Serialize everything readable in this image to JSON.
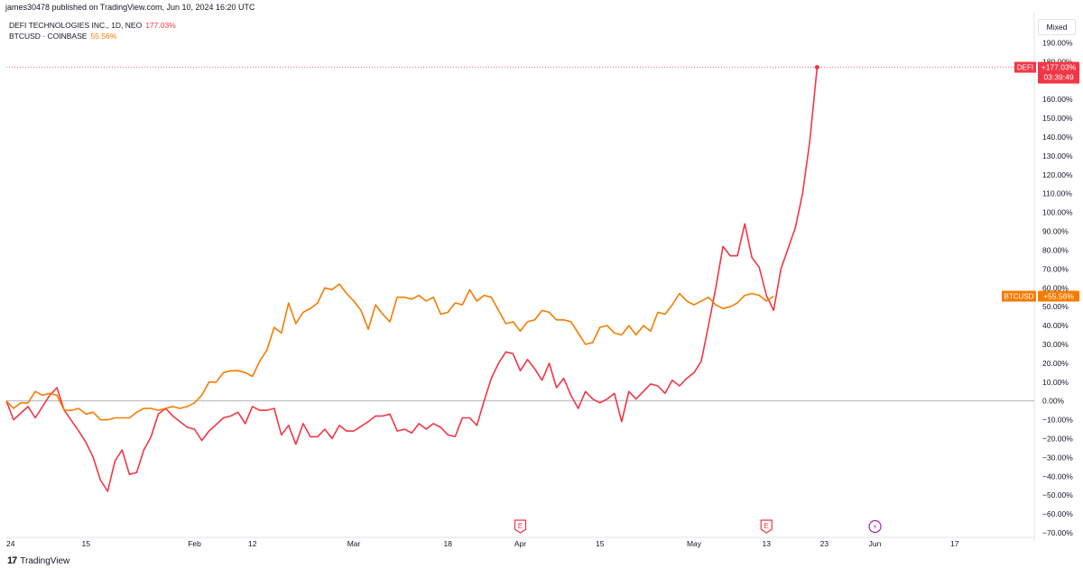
{
  "header": {
    "published": "james30478 published on TradingView.com, Jun 10, 2024 16:20 UTC"
  },
  "legend": {
    "defi_name": "DEFI TECHNOLOGIES INC., 1D, NEO",
    "defi_value": "177.03%",
    "btc_name": "BTCUSD · COINBASE",
    "btc_value": "55.56%"
  },
  "scale_mode": "Mixed",
  "footer": {
    "brand": "TradingView",
    "logo": "17"
  },
  "colors": {
    "defi": "#f23645",
    "btc": "#f57c00",
    "zero_line": "#b2b5be",
    "grid": "#f0f3fa"
  },
  "chart_data": {
    "type": "line",
    "title": "",
    "x_start_label": "24",
    "x_labels": [
      {
        "index": 0,
        "label": "24"
      },
      {
        "index": 11,
        "label": "15"
      },
      {
        "index": 26,
        "label": "Feb"
      },
      {
        "index": 34,
        "label": "12"
      },
      {
        "index": 48,
        "label": "Mar"
      },
      {
        "index": 61,
        "label": "18"
      },
      {
        "index": 71,
        "label": "Apr"
      },
      {
        "index": 82,
        "label": "15"
      },
      {
        "index": 95,
        "label": "May"
      },
      {
        "index": 105,
        "label": "13"
      },
      {
        "index": 113,
        "label": "23"
      },
      {
        "index": 120,
        "label": "Jun"
      },
      {
        "index": 131,
        "label": "17"
      }
    ],
    "x_range": [
      0,
      142
    ],
    "y_unit": "%",
    "ylim": [
      -70,
      190
    ],
    "y_ticks": [
      "190.00%",
      "180.00%",
      "170.00%",
      "160.00%",
      "150.00%",
      "140.00%",
      "130.00%",
      "120.00%",
      "110.00%",
      "100.00%",
      "90.00%",
      "80.00%",
      "70.00%",
      "60.00%",
      "50.00%",
      "40.00%",
      "30.00%",
      "20.00%",
      "10.00%",
      "0.00%",
      "−10.00%",
      "−20.00%",
      "−30.00%",
      "−40.00%",
      "−50.00%",
      "−60.00%",
      "−70.00%"
    ],
    "grid": false,
    "series": [
      {
        "name": "DEFI",
        "color": "#f23645",
        "last_label": "+177.03%",
        "countdown": "03:39:49",
        "points": [
          [
            0,
            0
          ],
          [
            1,
            -10
          ],
          [
            3,
            -3
          ],
          [
            4,
            -9
          ],
          [
            6,
            3
          ],
          [
            7,
            7
          ],
          [
            8,
            -5
          ],
          [
            10,
            -16
          ],
          [
            11,
            -22
          ],
          [
            12,
            -30
          ],
          [
            13,
            -42
          ],
          [
            14,
            -48
          ],
          [
            15,
            -32
          ],
          [
            16,
            -26
          ],
          [
            17,
            -39
          ],
          [
            18,
            -38
          ],
          [
            19,
            -26
          ],
          [
            20,
            -19
          ],
          [
            21,
            -7
          ],
          [
            22,
            -4
          ],
          [
            23,
            -8
          ],
          [
            24,
            -11
          ],
          [
            25,
            -14
          ],
          [
            26,
            -15
          ],
          [
            27,
            -21
          ],
          [
            28,
            -16
          ],
          [
            30,
            -9
          ],
          [
            31,
            -8
          ],
          [
            32,
            -6
          ],
          [
            33,
            -12
          ],
          [
            34,
            -3
          ],
          [
            35,
            -5
          ],
          [
            36,
            -5
          ],
          [
            37,
            -4
          ],
          [
            38,
            -18
          ],
          [
            39,
            -13
          ],
          [
            40,
            -23
          ],
          [
            41,
            -12
          ],
          [
            42,
            -19
          ],
          [
            43,
            -19
          ],
          [
            44,
            -15
          ],
          [
            45,
            -20
          ],
          [
            46,
            -13
          ],
          [
            47,
            -16
          ],
          [
            48,
            -16
          ],
          [
            50,
            -11
          ],
          [
            51,
            -8
          ],
          [
            52,
            -8
          ],
          [
            53,
            -7
          ],
          [
            54,
            -16
          ],
          [
            55,
            -15
          ],
          [
            56,
            -17
          ],
          [
            57,
            -12
          ],
          [
            58,
            -15
          ],
          [
            59,
            -12
          ],
          [
            60,
            -14
          ],
          [
            61,
            -18
          ],
          [
            62,
            -19
          ],
          [
            63,
            -9
          ],
          [
            64,
            -9
          ],
          [
            65,
            -13
          ],
          [
            66,
            0
          ],
          [
            67,
            12
          ],
          [
            68,
            20
          ],
          [
            69,
            26
          ],
          [
            70,
            25
          ],
          [
            71,
            16
          ],
          [
            72,
            22
          ],
          [
            73,
            17
          ],
          [
            74,
            11
          ],
          [
            75,
            20
          ],
          [
            76,
            7
          ],
          [
            77,
            12
          ],
          [
            78,
            3
          ],
          [
            79,
            -4
          ],
          [
            80,
            5
          ],
          [
            81,
            1
          ],
          [
            82,
            -1
          ],
          [
            83,
            1
          ],
          [
            84,
            4
          ],
          [
            85,
            -11
          ],
          [
            86,
            5
          ],
          [
            87,
            1
          ],
          [
            88,
            5
          ],
          [
            89,
            9
          ],
          [
            90,
            8
          ],
          [
            91,
            4
          ],
          [
            92,
            11
          ],
          [
            93,
            8
          ],
          [
            94,
            12
          ],
          [
            95,
            15
          ],
          [
            96,
            21
          ],
          [
            97,
            40
          ],
          [
            98,
            60
          ],
          [
            99,
            82
          ],
          [
            100,
            77
          ],
          [
            101,
            77
          ],
          [
            102,
            94
          ],
          [
            103,
            76
          ],
          [
            104,
            71
          ],
          [
            105,
            56
          ],
          [
            106,
            48
          ],
          [
            107,
            70
          ],
          [
            108,
            81
          ],
          [
            109,
            92
          ],
          [
            110,
            110
          ],
          [
            111,
            138
          ],
          [
            112,
            177.03
          ]
        ]
      },
      {
        "name": "BTCUSD",
        "color": "#f57c00",
        "last_label": "+55.56%",
        "points": [
          [
            0,
            0
          ],
          [
            1,
            -4
          ],
          [
            2,
            -1
          ],
          [
            3,
            -1
          ],
          [
            4,
            5
          ],
          [
            5,
            3
          ],
          [
            6,
            4
          ],
          [
            7,
            3
          ],
          [
            8,
            -5
          ],
          [
            9,
            -5
          ],
          [
            10,
            -4
          ],
          [
            11,
            -7
          ],
          [
            12,
            -6
          ],
          [
            13,
            -10
          ],
          [
            14,
            -10
          ],
          [
            15,
            -9
          ],
          [
            16,
            -9
          ],
          [
            17,
            -9
          ],
          [
            18,
            -6
          ],
          [
            19,
            -4
          ],
          [
            20,
            -4
          ],
          [
            21,
            -5
          ],
          [
            22,
            -4
          ],
          [
            23,
            -3
          ],
          [
            24,
            -4
          ],
          [
            25,
            -3
          ],
          [
            26,
            -1
          ],
          [
            27,
            3
          ],
          [
            28,
            10
          ],
          [
            29,
            10
          ],
          [
            30,
            15
          ],
          [
            31,
            16
          ],
          [
            32,
            16
          ],
          [
            33,
            15
          ],
          [
            34,
            13
          ],
          [
            35,
            21
          ],
          [
            36,
            27
          ],
          [
            37,
            39
          ],
          [
            38,
            36
          ],
          [
            39,
            52
          ],
          [
            40,
            41
          ],
          [
            41,
            47
          ],
          [
            42,
            49
          ],
          [
            43,
            52
          ],
          [
            44,
            60
          ],
          [
            45,
            59
          ],
          [
            46,
            62
          ],
          [
            47,
            57
          ],
          [
            48,
            53
          ],
          [
            49,
            48
          ],
          [
            50,
            38
          ],
          [
            51,
            51
          ],
          [
            52,
            46
          ],
          [
            53,
            42
          ],
          [
            54,
            55
          ],
          [
            55,
            55
          ],
          [
            56,
            54
          ],
          [
            57,
            56
          ],
          [
            58,
            53
          ],
          [
            59,
            55
          ],
          [
            60,
            46
          ],
          [
            61,
            47
          ],
          [
            62,
            52
          ],
          [
            63,
            51
          ],
          [
            64,
            59
          ],
          [
            65,
            53
          ],
          [
            66,
            56
          ],
          [
            67,
            55
          ],
          [
            68,
            48
          ],
          [
            69,
            41
          ],
          [
            70,
            42
          ],
          [
            71,
            37
          ],
          [
            72,
            42
          ],
          [
            73,
            43
          ],
          [
            74,
            48
          ],
          [
            75,
            47
          ],
          [
            76,
            43
          ],
          [
            77,
            43
          ],
          [
            78,
            42
          ],
          [
            79,
            36
          ],
          [
            80,
            30
          ],
          [
            81,
            31
          ],
          [
            82,
            39
          ],
          [
            83,
            40
          ],
          [
            84,
            36
          ],
          [
            85,
            35
          ],
          [
            86,
            40
          ],
          [
            87,
            35
          ],
          [
            88,
            40
          ],
          [
            89,
            37
          ],
          [
            90,
            47
          ],
          [
            91,
            46
          ],
          [
            92,
            51
          ],
          [
            93,
            57
          ],
          [
            94,
            53
          ],
          [
            95,
            51
          ],
          [
            96,
            53
          ],
          [
            97,
            55
          ],
          [
            98,
            51
          ],
          [
            99,
            49
          ],
          [
            100,
            50
          ],
          [
            101,
            52
          ],
          [
            102,
            56
          ],
          [
            103,
            57
          ],
          [
            104,
            56
          ],
          [
            105,
            53
          ],
          [
            106,
            55.56
          ]
        ]
      }
    ],
    "event_markers": [
      {
        "index": 71,
        "label": "E",
        "type": "earnings"
      },
      {
        "index": 105,
        "label": "E",
        "type": "earnings"
      },
      {
        "index": 120,
        "label": "⚡",
        "type": "split"
      }
    ]
  }
}
